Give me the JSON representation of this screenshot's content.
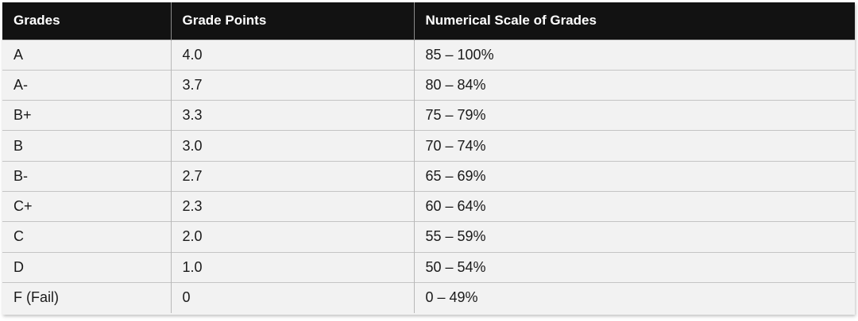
{
  "table": {
    "headers": [
      "Grades",
      "Grade Points",
      "Numerical Scale of Grades"
    ],
    "rows": [
      [
        "A",
        "4.0",
        "85 – 100%"
      ],
      [
        "A-",
        "3.7",
        "80 – 84%"
      ],
      [
        "B+",
        "3.3",
        "75 – 79%"
      ],
      [
        "B",
        "3.0",
        "70 – 74%"
      ],
      [
        "B-",
        "2.7",
        "65 – 69%"
      ],
      [
        "C+",
        "2.3",
        "60 – 64%"
      ],
      [
        "C",
        "2.0",
        "55 – 59%"
      ],
      [
        "D",
        "1.0",
        "50 – 54%"
      ],
      [
        "F (Fail)",
        "0",
        "0 – 49%"
      ]
    ]
  },
  "colors": {
    "header_bg": "#121212",
    "header_text": "#ffffff",
    "row_bg": "#f2f2f2",
    "body_text": "#1a1a1a"
  }
}
